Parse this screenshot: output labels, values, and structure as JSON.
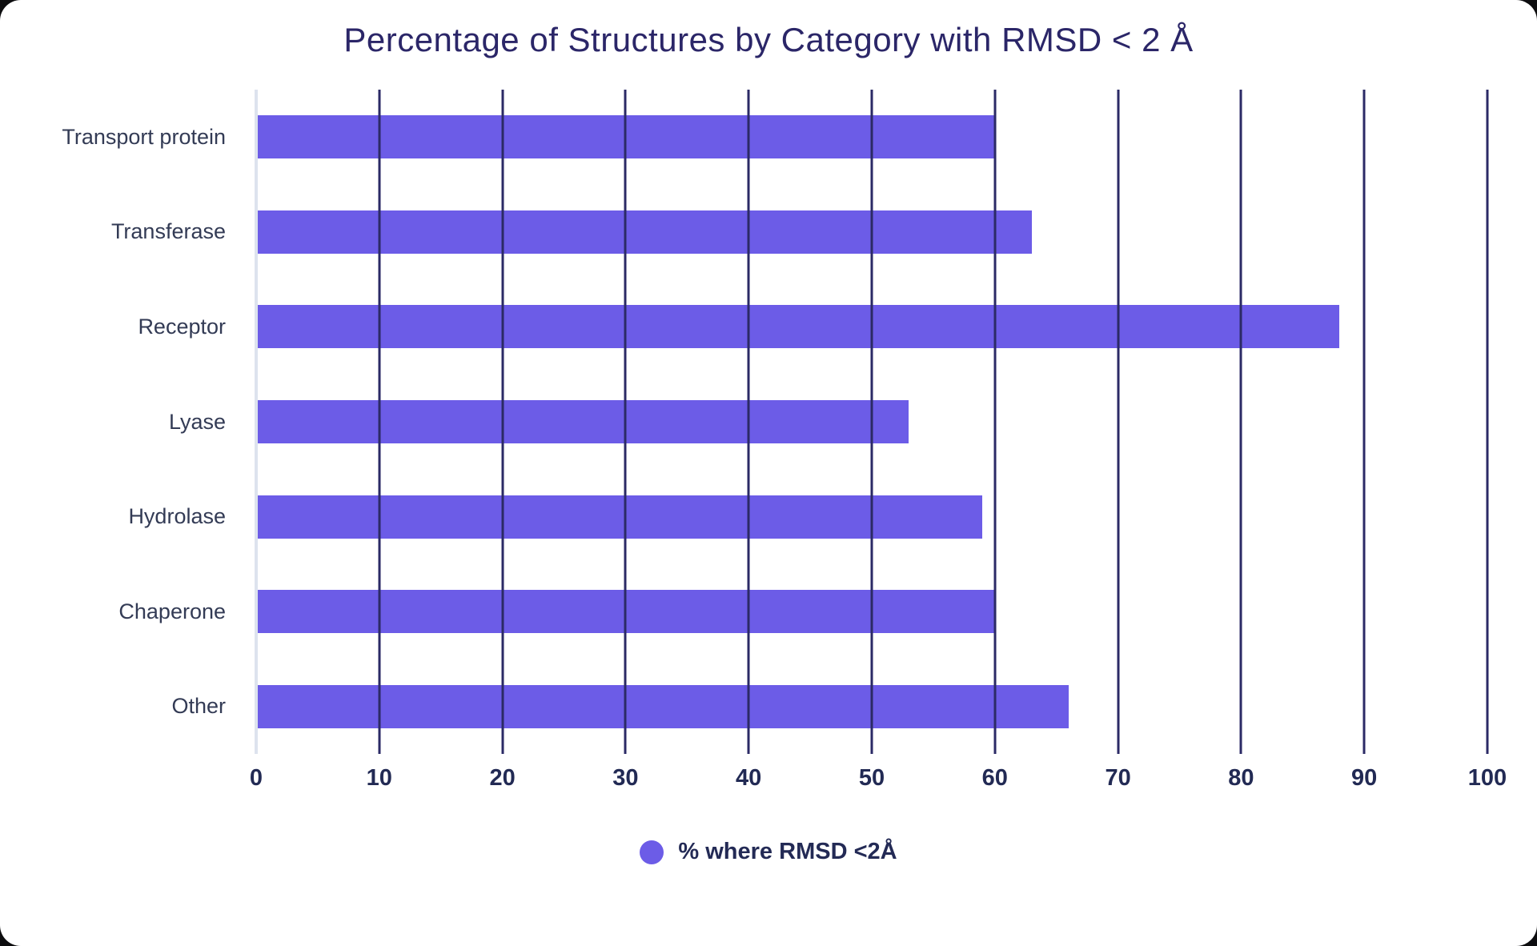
{
  "chart_data": {
    "type": "bar",
    "orientation": "horizontal",
    "title": "Percentage of Structures by Category with RMSD < 2 Å",
    "categories": [
      "Transport protein",
      "Transferase",
      "Receptor",
      "Lyase",
      "Hydrolase",
      "Chaperone",
      "Other"
    ],
    "values": [
      60,
      63,
      88,
      53,
      59,
      60,
      66
    ],
    "series_name": "% where RMSD <2Å",
    "xlabel": "",
    "ylabel": "",
    "xlim": [
      0,
      100
    ],
    "xticks": [
      0,
      10,
      20,
      30,
      40,
      50,
      60,
      70,
      80,
      90,
      100
    ],
    "grid": "vertical",
    "legend_position": "bottom",
    "bar_color": "#6C5CE7",
    "grid_color": "#2b2a66",
    "title_color": "#2b2668",
    "label_color": "#333b55",
    "tick_color": "#222a54"
  }
}
